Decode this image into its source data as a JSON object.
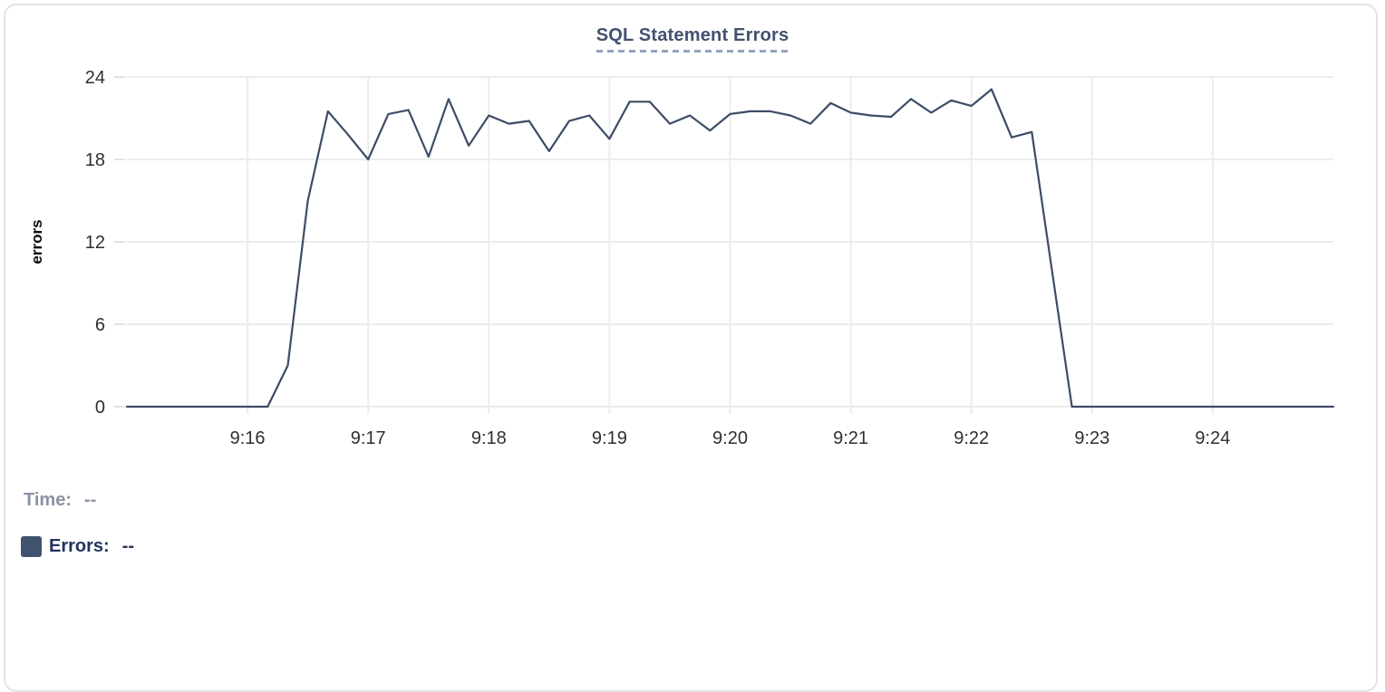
{
  "chart": {
    "title": "SQL Statement Errors",
    "y_axis_title": "errors"
  },
  "chart_data": {
    "type": "line",
    "title": "SQL Statement Errors",
    "xlabel": "",
    "ylabel": "errors",
    "ylim": [
      0,
      24
    ],
    "y_ticks": [
      0,
      6,
      12,
      18,
      24
    ],
    "x_ticks": [
      "9:16",
      "9:17",
      "9:18",
      "9:19",
      "9:20",
      "9:21",
      "9:22",
      "9:23",
      "9:24"
    ],
    "grid": true,
    "legend_position": "none",
    "line_color": "#3d4c66",
    "x": [
      "9:15:00",
      "9:15:10",
      "9:15:20",
      "9:15:30",
      "9:15:40",
      "9:15:50",
      "9:16:00",
      "9:16:10",
      "9:16:20",
      "9:16:30",
      "9:16:40",
      "9:16:50",
      "9:17:00",
      "9:17:10",
      "9:17:20",
      "9:17:30",
      "9:17:40",
      "9:17:50",
      "9:18:00",
      "9:18:10",
      "9:18:20",
      "9:18:30",
      "9:18:40",
      "9:18:50",
      "9:19:00",
      "9:19:10",
      "9:19:20",
      "9:19:30",
      "9:19:40",
      "9:19:50",
      "9:20:00",
      "9:20:10",
      "9:20:20",
      "9:20:30",
      "9:20:40",
      "9:20:50",
      "9:21:00",
      "9:21:10",
      "9:21:20",
      "9:21:30",
      "9:21:40",
      "9:21:50",
      "9:22:00",
      "9:22:10",
      "9:22:20",
      "9:22:30",
      "9:22:40",
      "9:22:50",
      "9:23:00",
      "9:23:10",
      "9:23:20",
      "9:23:30",
      "9:23:40",
      "9:23:50",
      "9:24:00",
      "9:24:10",
      "9:24:20",
      "9:24:30",
      "9:24:40",
      "9:24:50",
      "9:25:00"
    ],
    "series": [
      {
        "name": "Errors",
        "values": [
          0,
          0,
          0,
          0,
          0,
          0,
          0,
          0,
          3,
          15,
          21.5,
          19.8,
          18,
          21.3,
          21.6,
          18.2,
          22.4,
          19,
          21.2,
          20.6,
          20.8,
          18.6,
          20.8,
          21.2,
          19.5,
          22.2,
          22.2,
          20.6,
          21.2,
          20.1,
          21.3,
          21.5,
          21.5,
          21.2,
          20.6,
          22.1,
          21.4,
          21.2,
          21.1,
          22.4,
          21.4,
          22.3,
          21.9,
          23.1,
          19.6,
          20,
          10,
          0,
          0,
          0,
          0,
          0,
          0,
          0,
          0,
          0,
          0,
          0,
          0,
          0,
          0
        ]
      }
    ]
  },
  "readout": {
    "time_label": "Time:",
    "time_value": "--",
    "errors_label": "Errors:",
    "errors_value": "--",
    "swatch_color": "#42526e"
  },
  "colors": {
    "title": "#42526e",
    "title_dash": "#94a3c0",
    "line": "#3d4c66",
    "grid": "#ececec",
    "axis_text": "#2f2f2f",
    "y_axis_title_text": "#0d0d0d",
    "time_text": "#8a93a3",
    "errors_text": "#22355c",
    "panel_border": "#e3e3e6"
  }
}
